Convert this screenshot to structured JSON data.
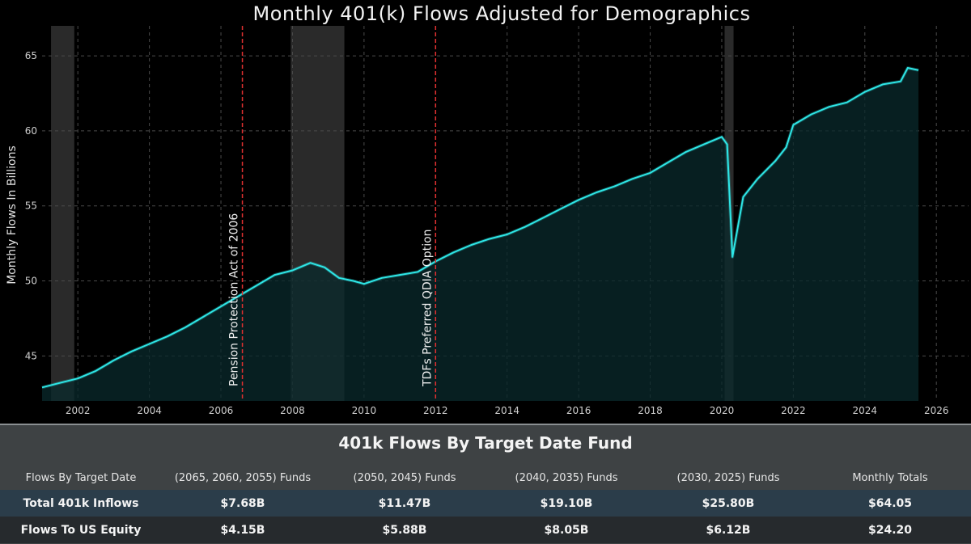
{
  "chart_data": {
    "type": "area",
    "title": "Monthly 401(k) Flows Adjusted for Demographics",
    "ylabel": "Monthly Flows In Billions",
    "xlabel": "",
    "xlim": [
      2001.0,
      2026.9
    ],
    "ylim": [
      42.0,
      67.0
    ],
    "xticks": [
      "2002",
      "2004",
      "2006",
      "2008",
      "2010",
      "2012",
      "2014",
      "2016",
      "2018",
      "2020",
      "2022",
      "2024",
      "2026"
    ],
    "yticks": [
      "45",
      "50",
      "55",
      "60",
      "65"
    ],
    "grid": true,
    "line_color": "#2ee6e6",
    "fill_color": "#0a2a2c",
    "recession_shading": [
      {
        "start": 2001.25,
        "end": 2001.9
      },
      {
        "start": 2007.95,
        "end": 2009.45
      },
      {
        "start": 2020.08,
        "end": 2020.33
      }
    ],
    "annotations": [
      {
        "x": 2006.6,
        "label": "Pension Protection Act of 2006",
        "color": "#e03030"
      },
      {
        "x": 2012.0,
        "label": "TDFs Preferred QDIA Option",
        "color": "#e03030"
      }
    ],
    "series": [
      {
        "x": [
          2001.0,
          2001.5,
          2002.0,
          2002.5,
          2003.0,
          2003.5,
          2004.0,
          2004.5,
          2005.0,
          2005.5,
          2006.0,
          2006.5,
          2007.0,
          2007.5,
          2008.0,
          2008.5,
          2008.9,
          2009.3,
          2009.7,
          2010.0,
          2010.5,
          2011.0,
          2011.5,
          2012.0,
          2012.5,
          2013.0,
          2013.5,
          2014.0,
          2014.5,
          2015.0,
          2015.5,
          2016.0,
          2016.5,
          2017.0,
          2017.5,
          2018.0,
          2018.5,
          2019.0,
          2019.5,
          2020.0,
          2020.15,
          2020.3,
          2020.6,
          2021.0,
          2021.5,
          2021.8,
          2022.0,
          2022.5,
          2023.0,
          2023.5,
          2024.0,
          2024.5,
          2025.0,
          2025.2,
          2025.5
        ],
        "y": [
          42.9,
          43.2,
          43.5,
          44.0,
          44.7,
          45.3,
          45.8,
          46.3,
          46.9,
          47.6,
          48.3,
          49.0,
          49.7,
          50.4,
          50.7,
          51.2,
          50.9,
          50.2,
          50.0,
          49.8,
          50.2,
          50.4,
          50.6,
          51.3,
          51.9,
          52.4,
          52.8,
          53.1,
          53.6,
          54.2,
          54.8,
          55.4,
          55.9,
          56.3,
          56.8,
          57.2,
          57.9,
          58.6,
          59.1,
          59.6,
          59.1,
          51.6,
          55.6,
          56.8,
          58.0,
          58.9,
          60.4,
          61.1,
          61.6,
          61.9,
          62.6,
          63.1,
          63.3,
          64.2,
          64.05
        ]
      }
    ]
  },
  "table": {
    "title": "401k Flows By Target Date Fund",
    "headers": [
      "Flows By Target Date",
      "(2065, 2060, 2055) Funds",
      "(2050, 2045) Funds",
      "(2040, 2035) Funds",
      "(2030, 2025) Funds",
      "Monthly Totals"
    ],
    "rows": [
      [
        "Total 401k Inflows",
        "$7.68B",
        "$11.47B",
        "$19.10B",
        "$25.80B",
        "$64.05"
      ],
      [
        "Flows To US Equity",
        "$4.15B",
        "$5.88B",
        "$8.05B",
        "$6.12B",
        "$24.20"
      ]
    ]
  }
}
